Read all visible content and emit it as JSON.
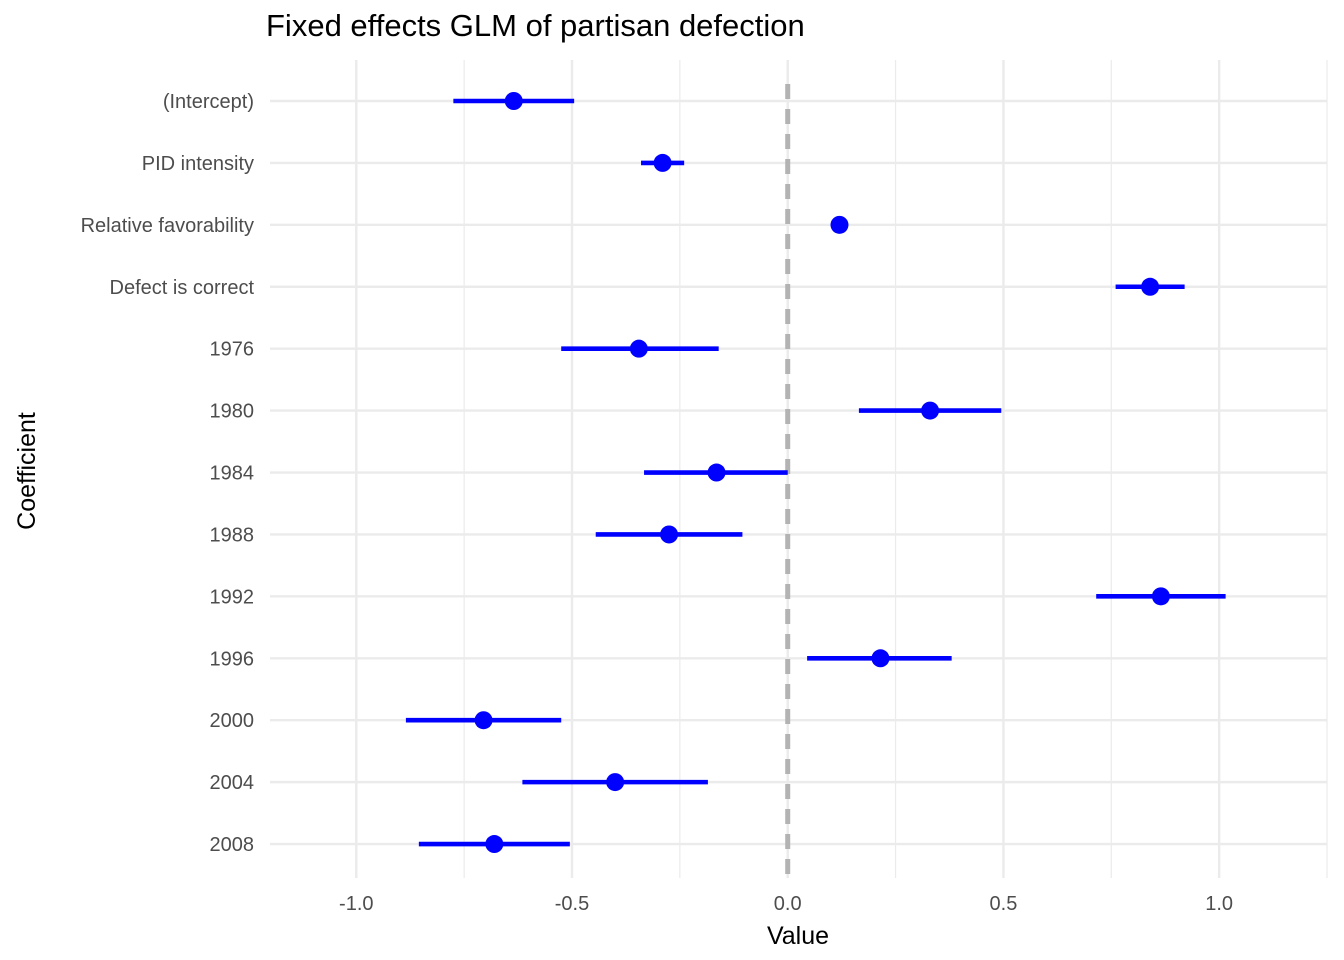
{
  "chart_data": {
    "type": "coefficient-plot",
    "title": "Fixed effects GLM of partisan defection",
    "xlabel": "Value",
    "ylabel": "Coefficient",
    "xlim": [
      -1.2,
      1.25
    ],
    "xticks": [
      -1.0,
      -0.5,
      0.0,
      0.5,
      1.0
    ],
    "xtick_labels": [
      "-1.0",
      "-0.5",
      "0.0",
      "0.5",
      "1.0"
    ],
    "reference_line": 0,
    "grid": true,
    "point_color": "#0000ff",
    "reference_color": "#b3b3b3",
    "grid_color": "#ebebeb",
    "coefficients": [
      {
        "name": "(Intercept)",
        "estimate": -0.635,
        "low": -0.775,
        "high": -0.495
      },
      {
        "name": "PID intensity",
        "estimate": -0.29,
        "low": -0.34,
        "high": -0.24
      },
      {
        "name": "Relative favorability",
        "estimate": 0.12,
        "low": 0.115,
        "high": 0.125
      },
      {
        "name": "Defect is correct",
        "estimate": 0.84,
        "low": 0.76,
        "high": 0.92
      },
      {
        "name": "1976",
        "estimate": -0.345,
        "low": -0.525,
        "high": -0.16
      },
      {
        "name": "1980",
        "estimate": 0.33,
        "low": 0.165,
        "high": 0.495
      },
      {
        "name": "1984",
        "estimate": -0.165,
        "low": -0.333,
        "high": 0.0
      },
      {
        "name": "1988",
        "estimate": -0.275,
        "low": -0.445,
        "high": -0.105
      },
      {
        "name": "1992",
        "estimate": 0.865,
        "low": 0.715,
        "high": 1.015
      },
      {
        "name": "1996",
        "estimate": 0.215,
        "low": 0.045,
        "high": 0.38
      },
      {
        "name": "2000",
        "estimate": -0.705,
        "low": -0.885,
        "high": -0.525
      },
      {
        "name": "2004",
        "estimate": -0.4,
        "low": -0.615,
        "high": -0.185
      },
      {
        "name": "2008",
        "estimate": -0.68,
        "low": -0.855,
        "high": -0.505
      }
    ]
  }
}
